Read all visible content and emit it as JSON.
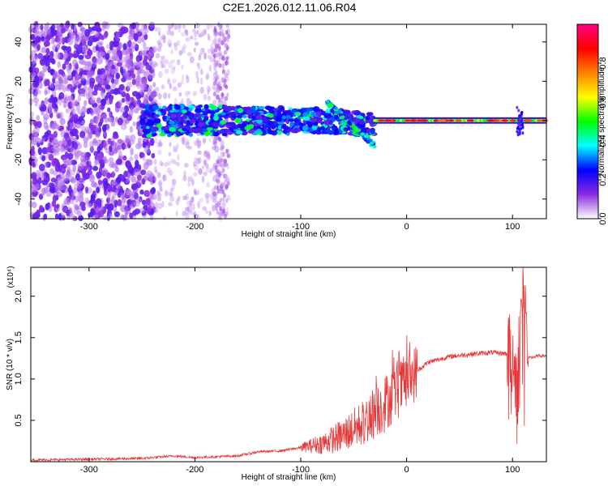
{
  "title": "C2E1.2026.012.11.06.R04",
  "chart_data": [
    {
      "type": "heatmap",
      "xlabel": "Height of straight line (km)",
      "ylabel": "Frequency (Hz)",
      "xlim": [
        -355,
        132
      ],
      "ylim": [
        -50,
        49
      ],
      "xticks": [
        -300,
        -200,
        -100,
        0,
        100
      ],
      "xtick_labels": [
        "-300",
        "-200",
        "-100",
        "0",
        "100"
      ],
      "yticks": [
        -40,
        -20,
        0,
        20,
        40
      ],
      "ytick_labels": [
        "-40",
        "-20",
        "0",
        "20",
        "40"
      ],
      "grid": false,
      "colorbar": {
        "label": "Normalized spectral amplitude",
        "range": [
          0,
          1
        ],
        "ticks": [
          0.0,
          0.2,
          0.4,
          0.6,
          0.8
        ],
        "tick_labels": [
          "0.0",
          "0.2",
          "0.4",
          "0.6",
          "0.8"
        ],
        "colormap": [
          "#ffffff",
          "#8a2be2",
          "#0000ff",
          "#00ffff",
          "#00ff00",
          "#ffff00",
          "#ff8000",
          "#ff0000",
          "#ff0080"
        ]
      },
      "features": [
        {
          "x_range": [
            -355,
            -238
          ],
          "y_range": [
            -50,
            49
          ],
          "level": 0.15,
          "pattern": "noise"
        },
        {
          "x_range": [
            -238,
            -168
          ],
          "y_range": [
            -50,
            49
          ],
          "level": 0.05,
          "pattern": "sparse-noise"
        },
        {
          "x_range": [
            -250,
            -30
          ],
          "y_center": 0,
          "y_halfwidth": 8,
          "level": 0.35,
          "pattern": "signal-band"
        },
        {
          "x_range": [
            -30,
            132
          ],
          "y_center": 0,
          "y_halfwidth": 2,
          "level": 0.9,
          "pattern": "carrier"
        }
      ]
    },
    {
      "type": "line",
      "xlabel": "Height of straight line (km)",
      "ylabel": "SNR (10 * v/v)",
      "y_multiplier": "(x10⁴)",
      "xlim": [
        -355,
        132
      ],
      "ylim": [
        0,
        2.35
      ],
      "xticks": [
        -300,
        -200,
        -100,
        0,
        100
      ],
      "xtick_labels": [
        "-300",
        "-200",
        "-100",
        "0",
        "100"
      ],
      "yticks": [
        0.5,
        1.0,
        1.5,
        2.0
      ],
      "ytick_labels": [
        "0.5",
        "1.0",
        "1.5",
        "2.0"
      ],
      "grid": false,
      "series": [
        {
          "color": "#e8393a",
          "x": [
            -355,
            -300,
            -250,
            -220,
            -200,
            -160,
            -140,
            -120,
            -100,
            -80,
            -60,
            -40,
            -20,
            0,
            10,
            20,
            40,
            60,
            80,
            100,
            105,
            110,
            115,
            125,
            132
          ],
          "y": [
            0.02,
            0.03,
            0.04,
            0.07,
            0.05,
            0.07,
            0.12,
            0.13,
            0.17,
            0.22,
            0.32,
            0.48,
            0.72,
            0.96,
            1.1,
            1.2,
            1.27,
            1.3,
            1.32,
            1.3,
            0.9,
            2.3,
            1.25,
            1.28,
            1.28
          ]
        }
      ]
    }
  ]
}
